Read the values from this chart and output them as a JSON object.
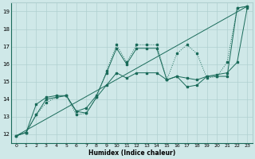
{
  "xlabel": "Humidex (Indice chaleur)",
  "xlim": [
    -0.5,
    23.5
  ],
  "ylim": [
    11.5,
    19.5
  ],
  "xticks": [
    0,
    1,
    2,
    3,
    4,
    5,
    6,
    7,
    8,
    9,
    10,
    11,
    12,
    13,
    14,
    15,
    16,
    17,
    18,
    19,
    20,
    21,
    22,
    23
  ],
  "yticks": [
    12,
    13,
    14,
    15,
    16,
    17,
    18,
    19
  ],
  "background_color": "#cfe8e8",
  "grid_color": "#b0d0d0",
  "line_color": "#1a6b5a",
  "line1_dotted": {
    "x": [
      0,
      1,
      2,
      3,
      4,
      5,
      6,
      7,
      8,
      9,
      10,
      11,
      12,
      13,
      14,
      15,
      16,
      17,
      18,
      19,
      20,
      21,
      22,
      23
    ],
    "y": [
      11.9,
      12.1,
      13.1,
      13.8,
      14.1,
      14.2,
      13.1,
      13.2,
      14.1,
      15.6,
      17.1,
      16.1,
      17.1,
      17.1,
      17.1,
      15.1,
      16.6,
      17.1,
      16.6,
      15.2,
      15.3,
      16.1,
      19.2,
      19.3
    ]
  },
  "line2_solid": {
    "x": [
      0,
      1,
      2,
      3,
      4,
      5,
      6,
      7,
      8,
      9,
      10,
      11,
      12,
      13,
      14,
      15,
      16,
      17,
      18,
      19,
      20,
      21,
      22,
      23
    ],
    "y": [
      11.9,
      12.1,
      13.7,
      14.1,
      14.2,
      14.2,
      13.3,
      13.5,
      14.2,
      15.5,
      16.9,
      16.0,
      16.9,
      16.9,
      16.9,
      15.1,
      15.3,
      14.7,
      14.8,
      15.3,
      15.3,
      15.3,
      19.2,
      19.3
    ]
  },
  "line3_lower": {
    "x": [
      0,
      1,
      2,
      3,
      4,
      5,
      6,
      7,
      8,
      9,
      10,
      11,
      12,
      13,
      14,
      15,
      16,
      17,
      18,
      19,
      20,
      21,
      22,
      23
    ],
    "y": [
      11.9,
      12.1,
      13.1,
      14.0,
      14.1,
      14.2,
      13.3,
      13.2,
      14.1,
      14.8,
      15.5,
      15.2,
      15.5,
      15.5,
      15.5,
      15.1,
      15.3,
      15.2,
      15.1,
      15.3,
      15.4,
      15.5,
      16.1,
      19.2
    ]
  },
  "line4_diagonal": {
    "x": [
      0,
      23
    ],
    "y": [
      11.9,
      19.3
    ]
  }
}
